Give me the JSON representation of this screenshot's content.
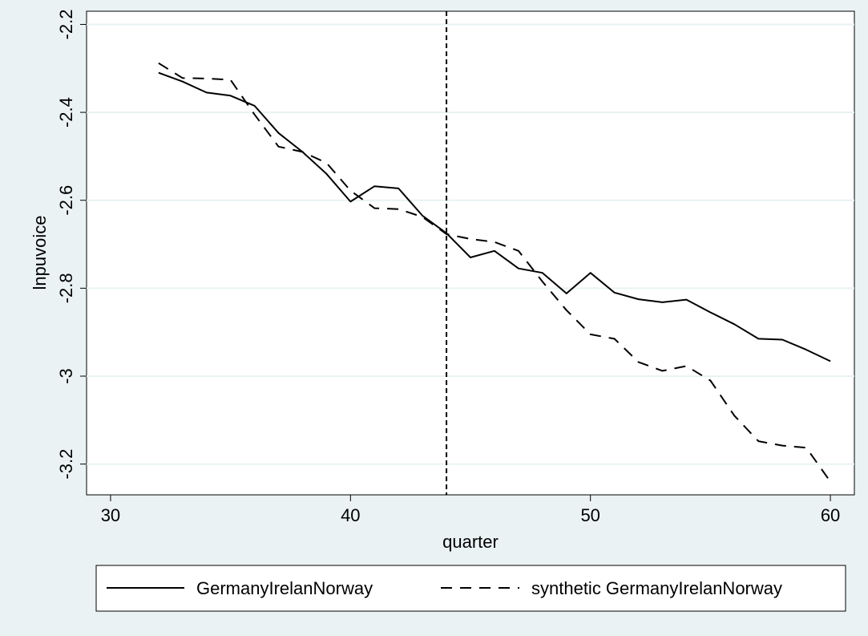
{
  "chart_data": {
    "type": "line",
    "xlabel": "quarter",
    "ylabel": "lnpuvoice",
    "xlim": [
      29,
      61
    ],
    "ylim": [
      -3.27,
      -2.17
    ],
    "x_ticks": [
      30,
      40,
      50,
      60
    ],
    "x_tick_labels": [
      "30",
      "40",
      "50",
      "60"
    ],
    "y_ticks": [
      -2.2,
      -2.4,
      -2.6,
      -2.8,
      -3.0,
      -3.2
    ],
    "y_tick_labels": [
      "-2.2",
      "-2.4",
      "-2.6",
      "-2.8",
      "-3",
      "-3.2"
    ],
    "grid": true,
    "legend_position": "bottom",
    "treatment_line_x": 44,
    "x": [
      32,
      33,
      34,
      35,
      36,
      37,
      38,
      39,
      40,
      41,
      42,
      43,
      44,
      45,
      46,
      47,
      48,
      49,
      50,
      51,
      52,
      53,
      54,
      55,
      56,
      57,
      58,
      59,
      60
    ],
    "series": [
      {
        "name": "GermanyIrelanNorway",
        "style": "solid",
        "values": [
          -2.31,
          -2.33,
          -2.355,
          -2.362,
          -2.385,
          -2.447,
          -2.49,
          -2.54,
          -2.603,
          -2.568,
          -2.573,
          -2.635,
          -2.675,
          -2.73,
          -2.715,
          -2.755,
          -2.765,
          -2.812,
          -2.765,
          -2.81,
          -2.825,
          -2.832,
          -2.826,
          -2.855,
          -2.882,
          -2.915,
          -2.917,
          -2.94,
          -2.966
        ]
      },
      {
        "name": "synthetic GermanyIrelanNorway",
        "style": "dashed",
        "values": [
          -2.288,
          -2.322,
          -2.323,
          -2.326,
          -2.405,
          -2.478,
          -2.49,
          -2.515,
          -2.578,
          -2.618,
          -2.62,
          -2.638,
          -2.677,
          -2.688,
          -2.695,
          -2.715,
          -2.785,
          -2.85,
          -2.905,
          -2.915,
          -2.968,
          -2.988,
          -2.977,
          -3.01,
          -3.09,
          -3.148,
          -3.158,
          -3.163,
          -3.24
        ]
      }
    ]
  }
}
